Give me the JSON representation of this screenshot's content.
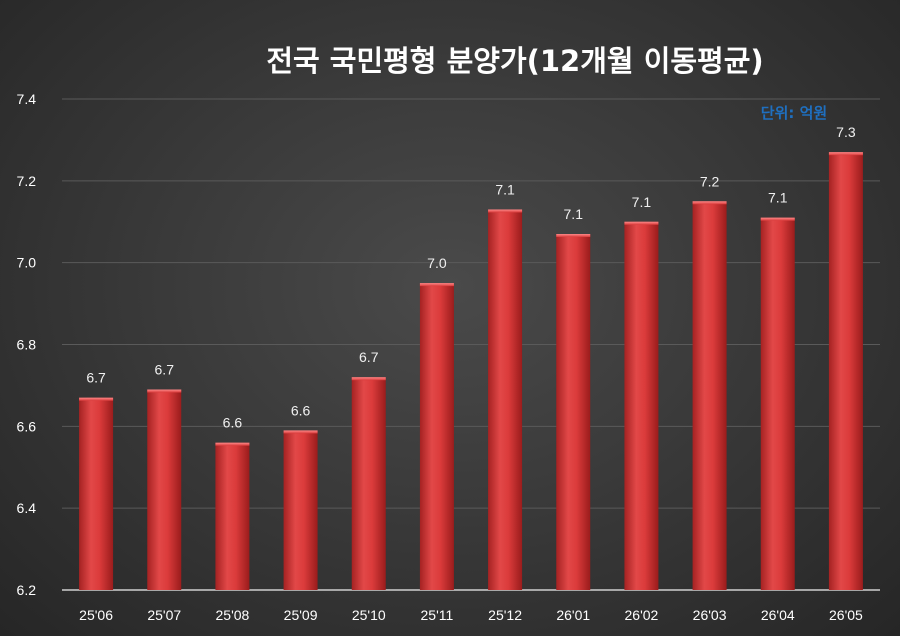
{
  "chart_data": {
    "type": "bar",
    "title": "전국 국민평형 분양가(12개월 이동평균)",
    "unit_label": "단위: 억원",
    "categories": [
      "25'06",
      "25'07",
      "25'08",
      "25'09",
      "25'10",
      "25'11",
      "25'12",
      "26'01",
      "26'02",
      "26'03",
      "26'04",
      "26'05"
    ],
    "values": [
      6.67,
      6.69,
      6.56,
      6.59,
      6.72,
      6.95,
      7.13,
      7.07,
      7.1,
      7.15,
      7.11,
      7.27
    ],
    "data_labels": [
      "6.7",
      "6.7",
      "6.6",
      "6.6",
      "6.7",
      "7.0",
      "7.1",
      "7.1",
      "7.1",
      "7.2",
      "7.1",
      "7.3"
    ],
    "ylim": [
      6.2,
      7.4
    ],
    "yticks": [
      "6.2",
      "6.4",
      "6.6",
      "6.8",
      "7.0",
      "7.2",
      "7.4"
    ],
    "ytick_values": [
      6.2,
      6.4,
      6.6,
      6.8,
      7.0,
      7.2,
      7.4
    ],
    "xlabel": "",
    "ylabel": "",
    "grid": true,
    "legend": "none",
    "colors": {
      "bar": "#d93a3a",
      "bar_dark": "#9e1f1f",
      "bar_light": "#f06a6a",
      "title": "#ffffff",
      "unit": "#1f6fbf"
    }
  }
}
